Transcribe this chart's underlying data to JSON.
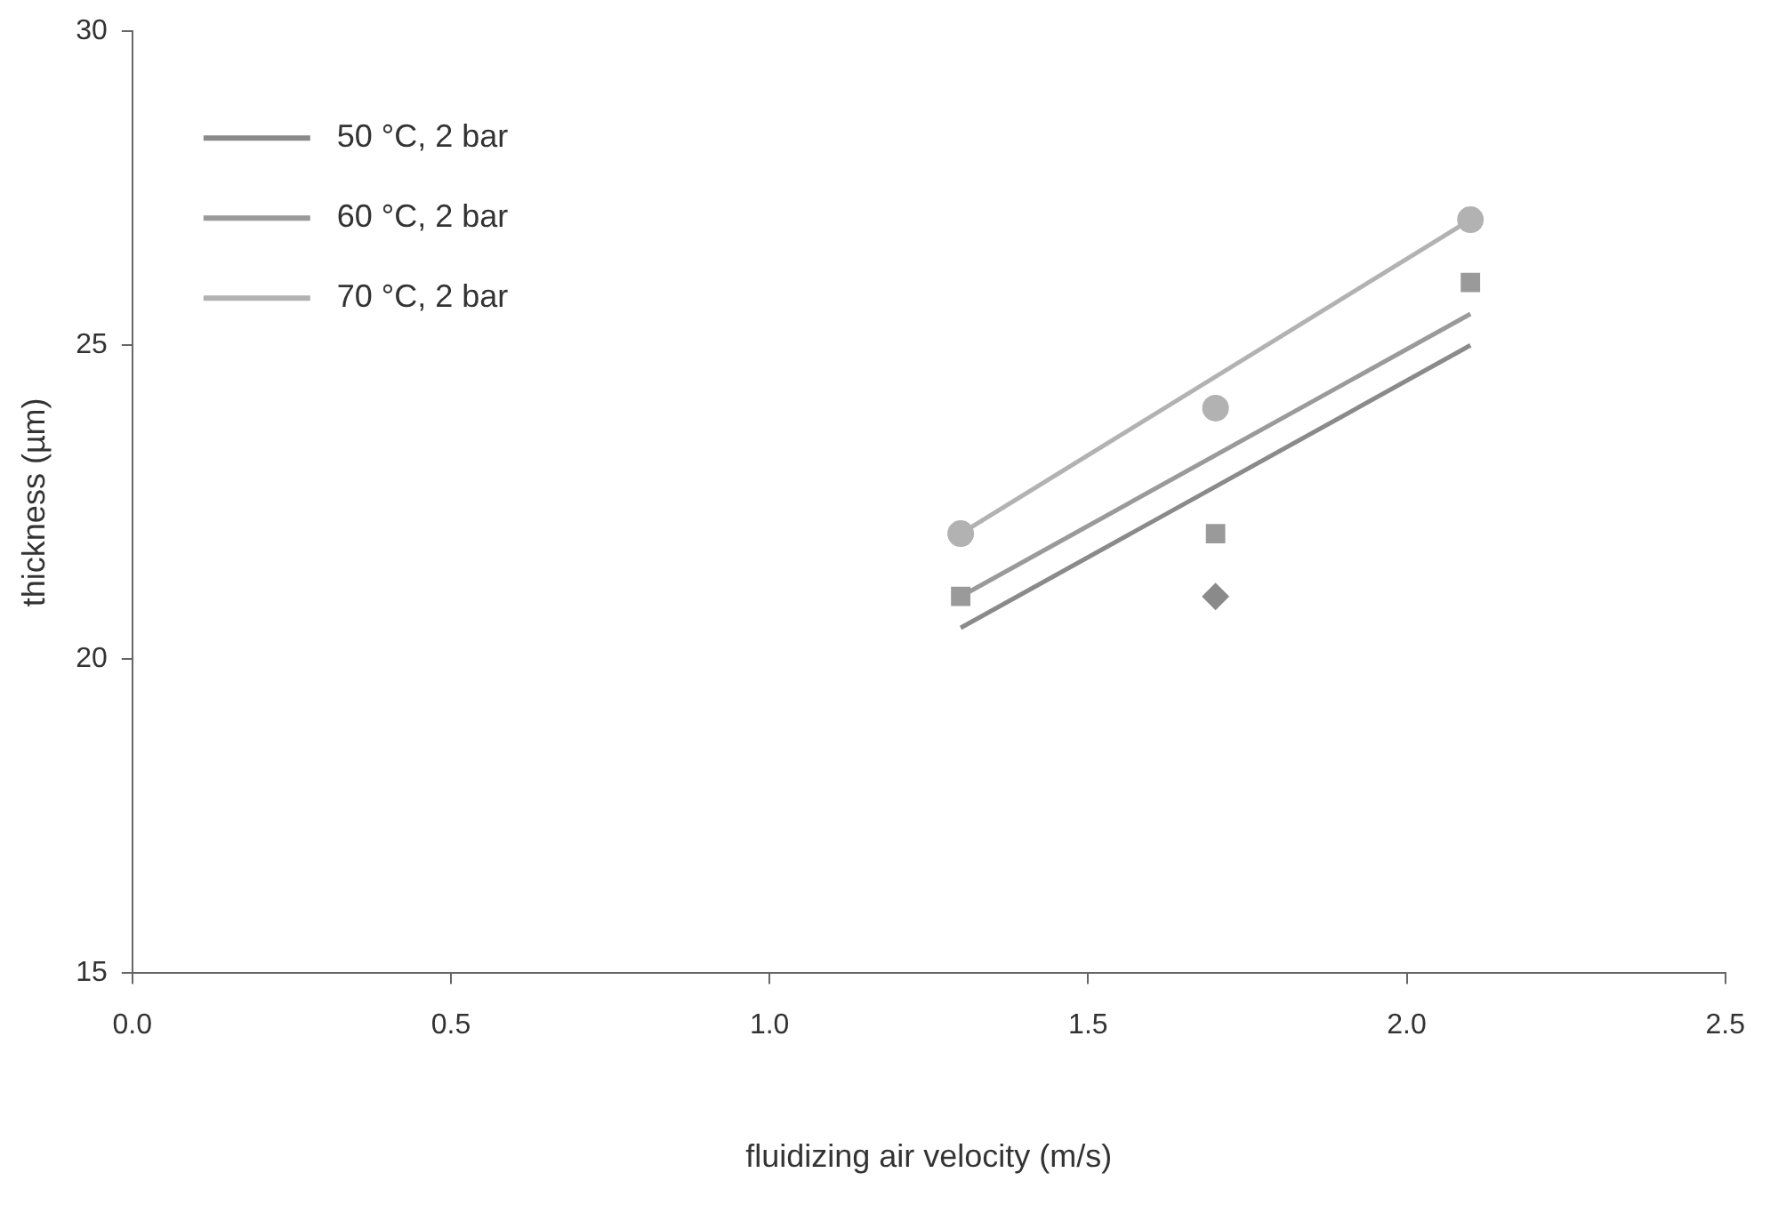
{
  "chart_data": {
    "type": "scatter",
    "xlabel": "fluidizing air velocity (m/s)",
    "ylabel": "thickness (µm)",
    "xlim": [
      0,
      2.5
    ],
    "ylim": [
      15,
      30
    ],
    "xticks": [
      {
        "value": 0,
        "label": "0.0"
      },
      {
        "value": 0.5,
        "label": "0.5"
      },
      {
        "value": 1,
        "label": "1.0"
      },
      {
        "value": 1.5,
        "label": "1.5"
      },
      {
        "value": 2,
        "label": "2.0"
      },
      {
        "value": 2.5,
        "label": "2.5"
      }
    ],
    "yticks": [
      15,
      20,
      25,
      30
    ],
    "grid": false,
    "legend": "top left",
    "line_style": "solid",
    "series": [
      {
        "type": "line",
        "name": "50 °C, 2 bar",
        "color": "#8a8a8a",
        "marker": "none",
        "x": [
          1.3,
          2.1
        ],
        "values": [
          20.5,
          25
        ]
      },
      {
        "type": "line",
        "name": "60 °C, 2 bar",
        "color": "#9a9a9a",
        "marker": "none",
        "x": [
          1.3,
          2.1
        ],
        "values": [
          21,
          25.5
        ]
      },
      {
        "type": "line",
        "name": "70 °C, 2 bar",
        "color": "#b2b2b2",
        "marker": "none",
        "x": [
          1.3,
          2.1
        ],
        "values": [
          22,
          27
        ]
      },
      {
        "type": "scatter",
        "color": "#8a8a8a",
        "marker": "diamond",
        "x": [
          1.7
        ],
        "values": [
          21
        ]
      },
      {
        "type": "scatter",
        "color": "#9a9a9a",
        "marker": "square",
        "x": [
          1.3,
          1.7,
          2.1
        ],
        "values": [
          21,
          22,
          26
        ]
      },
      {
        "type": "scatter",
        "color": "#b2b2b2",
        "marker": "circle",
        "x": [
          1.3,
          1.7,
          2.1
        ],
        "values": [
          22,
          24,
          27
        ]
      }
    ]
  }
}
